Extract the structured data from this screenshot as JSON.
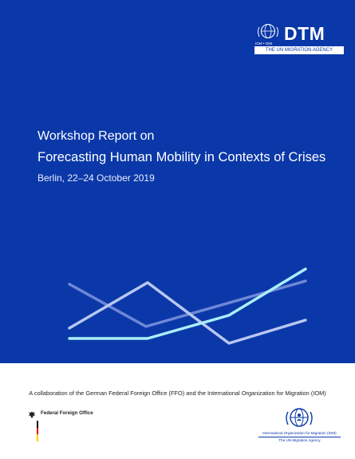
{
  "header": {
    "dtm_logo_text": "DTM",
    "dtm_logo_sub": "IOM • OIM",
    "dtm_tagline": "THE UN MIGRATION AGENCY"
  },
  "cover": {
    "pretitle": "Workshop Report on",
    "title": "Forecasting Human Mobility in Contexts of Crises",
    "date": "Berlin, 22–24 October 2019"
  },
  "decoration": {
    "line_colors": [
      "#6f87d8",
      "#b9c7f2",
      "#dce4fb",
      "#a9eef8"
    ]
  },
  "footer": {
    "caption": "A collaboration of the German Federal Foreign Office (FFO) and the International Organization for Migration (IOM)",
    "ffo_label": "Federal Foreign Office",
    "iom_name": "International Organization for Migration (IOM)",
    "iom_agency": "The UN Migration Agency"
  },
  "colors": {
    "cover_blue": "#0b38a8"
  }
}
